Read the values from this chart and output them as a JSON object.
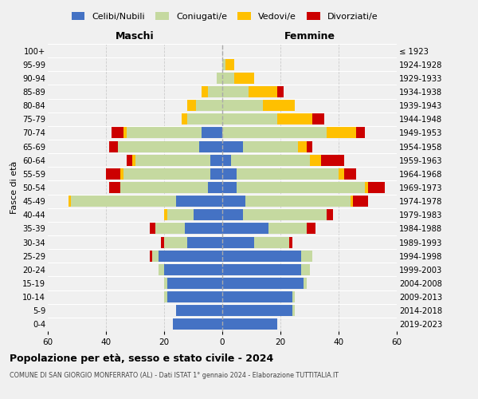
{
  "age_groups": [
    "0-4",
    "5-9",
    "10-14",
    "15-19",
    "20-24",
    "25-29",
    "30-34",
    "35-39",
    "40-44",
    "45-49",
    "50-54",
    "55-59",
    "60-64",
    "65-69",
    "70-74",
    "75-79",
    "80-84",
    "85-89",
    "90-94",
    "95-99",
    "100+"
  ],
  "birth_years": [
    "2019-2023",
    "2014-2018",
    "2009-2013",
    "2004-2008",
    "1999-2003",
    "1994-1998",
    "1989-1993",
    "1984-1988",
    "1979-1983",
    "1974-1978",
    "1969-1973",
    "1964-1968",
    "1959-1963",
    "1954-1958",
    "1949-1953",
    "1944-1948",
    "1939-1943",
    "1934-1938",
    "1929-1933",
    "1924-1928",
    "≤ 1923"
  ],
  "colors": {
    "celibe": "#4472c4",
    "coniugato": "#c5d9a0",
    "vedovo": "#ffc000",
    "divorziato": "#cc0000"
  },
  "maschi": {
    "celibe": [
      17,
      16,
      19,
      19,
      20,
      22,
      12,
      13,
      10,
      16,
      5,
      4,
      4,
      8,
      7,
      0,
      0,
      0,
      0,
      0,
      0
    ],
    "coniugato": [
      0,
      0,
      1,
      1,
      2,
      2,
      8,
      10,
      9,
      36,
      30,
      30,
      26,
      28,
      26,
      12,
      9,
      5,
      2,
      0,
      0
    ],
    "vedovo": [
      0,
      0,
      0,
      0,
      0,
      0,
      0,
      0,
      1,
      1,
      0,
      1,
      1,
      0,
      1,
      2,
      3,
      2,
      0,
      0,
      0
    ],
    "divorziato": [
      0,
      0,
      0,
      0,
      0,
      1,
      1,
      2,
      0,
      0,
      4,
      5,
      2,
      3,
      4,
      0,
      0,
      0,
      0,
      0,
      0
    ]
  },
  "femmine": {
    "nubile": [
      19,
      24,
      24,
      28,
      27,
      27,
      11,
      16,
      7,
      8,
      5,
      5,
      3,
      7,
      0,
      0,
      0,
      0,
      0,
      0,
      0
    ],
    "coniugata": [
      0,
      1,
      1,
      1,
      3,
      4,
      12,
      13,
      29,
      36,
      44,
      35,
      27,
      19,
      36,
      19,
      14,
      9,
      4,
      1,
      0
    ],
    "vedova": [
      0,
      0,
      0,
      0,
      0,
      0,
      0,
      0,
      0,
      1,
      1,
      2,
      4,
      3,
      10,
      12,
      11,
      10,
      7,
      3,
      0
    ],
    "divorziata": [
      0,
      0,
      0,
      0,
      0,
      0,
      1,
      3,
      2,
      5,
      6,
      4,
      8,
      2,
      3,
      4,
      0,
      2,
      0,
      0,
      0
    ]
  },
  "xlim": 60,
  "title": "Popolazione per età, sesso e stato civile - 2024",
  "subtitle": "COMUNE DI SAN GIORGIO MONFERRATO (AL) - Dati ISTAT 1° gennaio 2024 - Elaborazione TUTTITALIA.IT",
  "ylabel_left": "Fasce di età",
  "xlabel_left": "Maschi",
  "xlabel_right": "Femmine",
  "bg_color": "#f0f0f0",
  "grid_color": "#cccccc"
}
